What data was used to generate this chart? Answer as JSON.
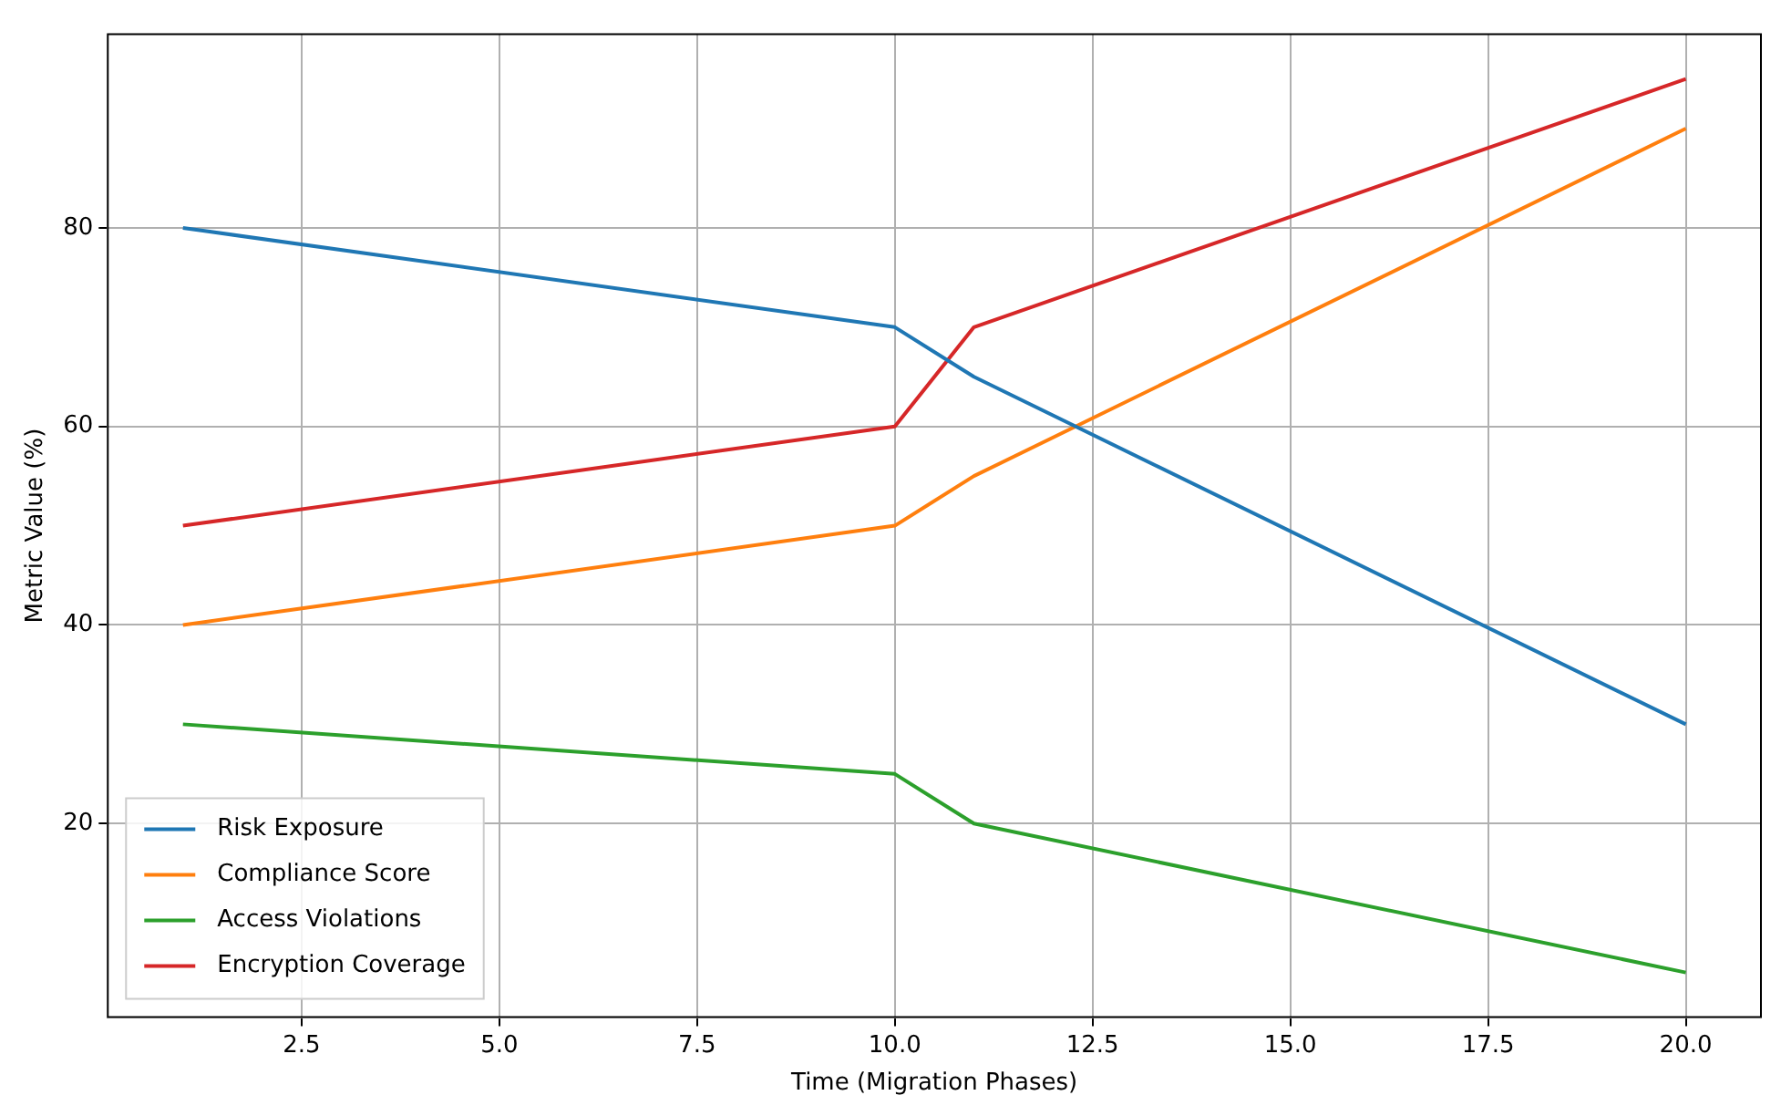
{
  "chart_data": {
    "type": "line",
    "xlabel": "Time (Migration Phases)",
    "ylabel": "Metric Value (%)",
    "xlim": [
      0.05,
      20.95
    ],
    "ylim": [
      0.5,
      99.5
    ],
    "xticks": [
      {
        "value": 2.5,
        "label": "2.5"
      },
      {
        "value": 5,
        "label": "5.0"
      },
      {
        "value": 7.5,
        "label": "7.5"
      },
      {
        "value": 10,
        "label": "10.0"
      },
      {
        "value": 12.5,
        "label": "12.5"
      },
      {
        "value": 15,
        "label": "15.0"
      },
      {
        "value": 17.5,
        "label": "17.5"
      },
      {
        "value": 20,
        "label": "20.0"
      }
    ],
    "yticks": [
      20,
      40,
      60,
      80
    ],
    "x": [
      1,
      10,
      11,
      20
    ],
    "series": [
      {
        "name": "Risk Exposure",
        "color": "#1f77b4",
        "values": [
          80,
          70,
          65,
          30
        ]
      },
      {
        "name": "Compliance Score",
        "color": "#ff7f0e",
        "values": [
          40,
          50,
          55,
          90
        ]
      },
      {
        "name": "Access Violations",
        "color": "#2ca02c",
        "values": [
          30,
          25,
          20,
          5
        ]
      },
      {
        "name": "Encryption Coverage",
        "color": "#d62728",
        "values": [
          50,
          60,
          70,
          95
        ]
      }
    ],
    "grid": true,
    "legend": "bottom left",
    "marker": "none",
    "line_style": "solid"
  }
}
